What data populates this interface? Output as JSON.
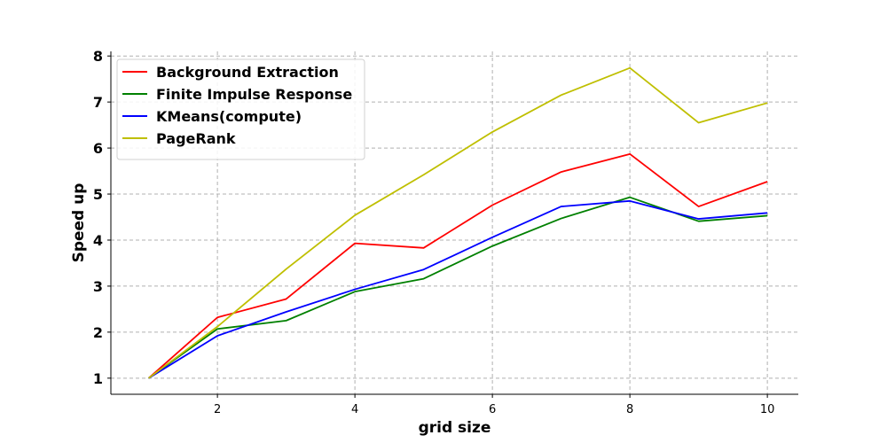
{
  "chart_data": {
    "type": "line",
    "title": "",
    "xlabel": "grid size",
    "ylabel": "Speed up",
    "x": [
      1,
      2,
      3,
      4,
      5,
      6,
      7,
      8,
      9,
      10
    ],
    "xticks": [
      2,
      4,
      6,
      8,
      10
    ],
    "yticks": [
      1,
      2,
      3,
      4,
      5,
      6,
      7,
      8
    ],
    "xlim": [
      0.45,
      10.45
    ],
    "ylim": [
      0.65,
      8.1
    ],
    "grid": true,
    "legend_position": "top-left",
    "series": [
      {
        "name": "Background Extraction",
        "color": "#ff0000",
        "values": [
          1.0,
          2.32,
          2.72,
          3.93,
          3.83,
          4.76,
          5.48,
          5.87,
          4.73,
          5.27
        ]
      },
      {
        "name": "Finite Impulse Response",
        "color": "#008000",
        "values": [
          1.0,
          2.07,
          2.25,
          2.88,
          3.16,
          3.87,
          4.47,
          4.93,
          4.41,
          4.53
        ]
      },
      {
        "name": "KMeans(compute)",
        "color": "#0000ff",
        "values": [
          1.0,
          1.92,
          2.44,
          2.93,
          3.36,
          4.06,
          4.73,
          4.85,
          4.46,
          4.59
        ]
      },
      {
        "name": "PageRank",
        "color": "#bfbf00",
        "values": [
          1.0,
          2.12,
          3.37,
          4.54,
          5.42,
          6.35,
          7.15,
          7.74,
          6.55,
          6.98
        ]
      }
    ]
  }
}
